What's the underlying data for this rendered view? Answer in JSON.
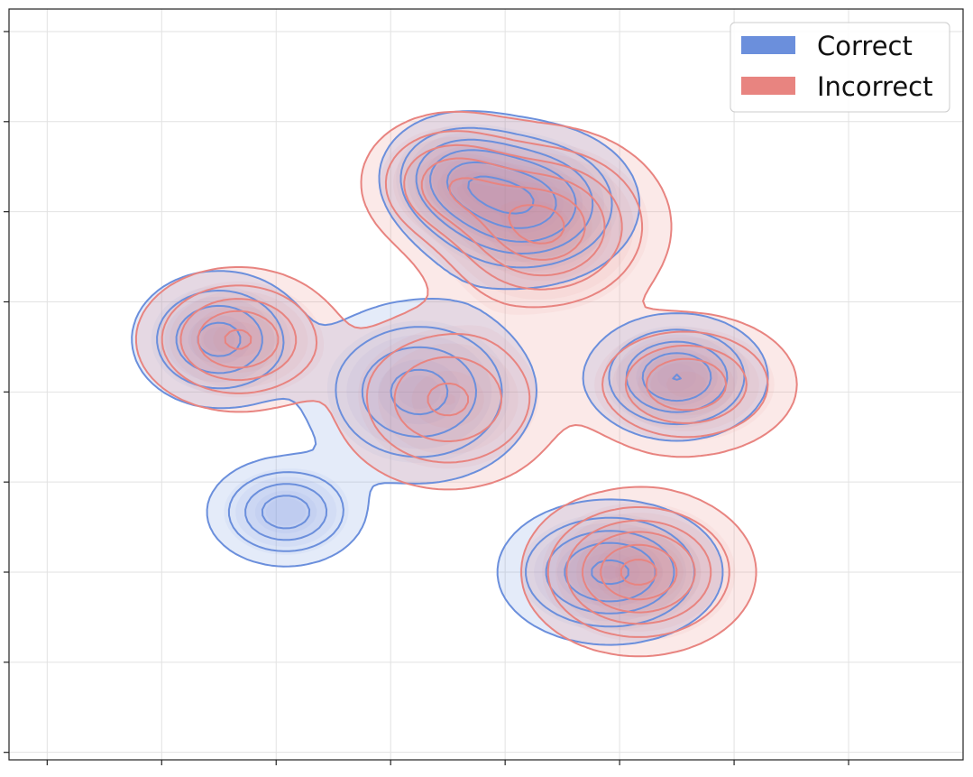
{
  "chart_data": {
    "type": "kde_contour",
    "title": "",
    "xlabel": "",
    "ylabel": "",
    "xlim": [
      0,
      1
    ],
    "ylim": [
      0,
      1
    ],
    "grid": true,
    "x_ticks": [
      0.04,
      0.16,
      0.28,
      0.4,
      0.52,
      0.64,
      0.76,
      0.88
    ],
    "y_ticks": [
      0.01,
      0.13,
      0.25,
      0.37,
      0.49,
      0.61,
      0.73,
      0.85,
      0.97
    ],
    "x_tick_labels": [],
    "y_tick_labels": [],
    "legend_position": "top-right",
    "series": [
      {
        "name": "Correct",
        "color": "#6b8fdc",
        "modes": [
          {
            "x": 0.54,
            "y": 0.74,
            "sx": 0.055,
            "sy": 0.05,
            "w": 1.0
          },
          {
            "x": 0.7,
            "y": 0.51,
            "sx": 0.045,
            "sy": 0.04,
            "w": 0.85
          },
          {
            "x": 0.63,
            "y": 0.25,
            "sx": 0.055,
            "sy": 0.045,
            "w": 0.9
          },
          {
            "x": 0.43,
            "y": 0.49,
            "sx": 0.06,
            "sy": 0.06,
            "w": 0.7
          },
          {
            "x": 0.22,
            "y": 0.56,
            "sx": 0.045,
            "sy": 0.045,
            "w": 0.7
          },
          {
            "x": 0.29,
            "y": 0.33,
            "sx": 0.04,
            "sy": 0.035,
            "w": 0.75
          },
          {
            "x": 0.47,
            "y": 0.78,
            "sx": 0.04,
            "sy": 0.04,
            "w": 0.6
          }
        ]
      },
      {
        "name": "Incorrect",
        "color": "#e88480",
        "modes": [
          {
            "x": 0.56,
            "y": 0.71,
            "sx": 0.06,
            "sy": 0.06,
            "w": 1.0
          },
          {
            "x": 0.66,
            "y": 0.25,
            "sx": 0.055,
            "sy": 0.05,
            "w": 1.0
          },
          {
            "x": 0.24,
            "y": 0.56,
            "sx": 0.05,
            "sy": 0.045,
            "w": 0.8
          },
          {
            "x": 0.71,
            "y": 0.5,
            "sx": 0.055,
            "sy": 0.045,
            "w": 0.75
          },
          {
            "x": 0.46,
            "y": 0.48,
            "sx": 0.06,
            "sy": 0.06,
            "w": 0.6
          },
          {
            "x": 0.46,
            "y": 0.77,
            "sx": 0.045,
            "sy": 0.045,
            "w": 0.6
          }
        ]
      }
    ]
  },
  "legend": {
    "items": [
      {
        "label": "Correct",
        "color": "#6b8fdc"
      },
      {
        "label": "Incorrect",
        "color": "#e88480"
      }
    ]
  }
}
